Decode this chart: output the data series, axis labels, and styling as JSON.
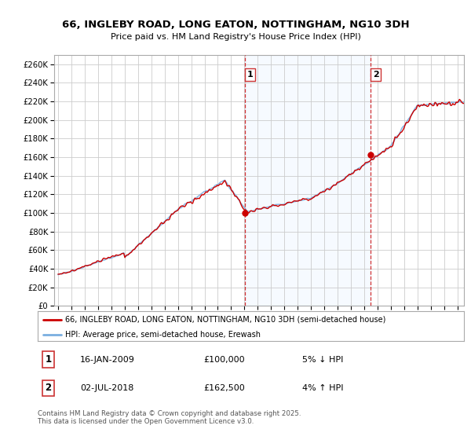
{
  "title_line1": "66, INGLEBY ROAD, LONG EATON, NOTTINGHAM, NG10 3DH",
  "title_line2": "Price paid vs. HM Land Registry's House Price Index (HPI)",
  "ylim": [
    0,
    270000
  ],
  "yticks": [
    0,
    20000,
    40000,
    60000,
    80000,
    100000,
    120000,
    140000,
    160000,
    180000,
    200000,
    220000,
    240000,
    260000
  ],
  "ytick_labels": [
    "£0",
    "£20K",
    "£40K",
    "£60K",
    "£80K",
    "£100K",
    "£120K",
    "£140K",
    "£160K",
    "£180K",
    "£200K",
    "£220K",
    "£240K",
    "£260K"
  ],
  "sale1_date_num": 2009.04,
  "sale1_price": 100000,
  "sale2_date_num": 2018.5,
  "sale2_price": 162500,
  "legend_line1": "66, INGLEBY ROAD, LONG EATON, NOTTINGHAM, NG10 3DH (semi-detached house)",
  "legend_line2": "HPI: Average price, semi-detached house, Erewash",
  "footer": "Contains HM Land Registry data © Crown copyright and database right 2025.\nThis data is licensed under the Open Government Licence v3.0.",
  "line_color_red": "#cc0000",
  "line_color_blue": "#7aafe0",
  "shade_color": "#ddeeff",
  "plot_bg": "#ffffff",
  "grid_color": "#cccccc",
  "xmin": 1995,
  "xmax": 2025
}
